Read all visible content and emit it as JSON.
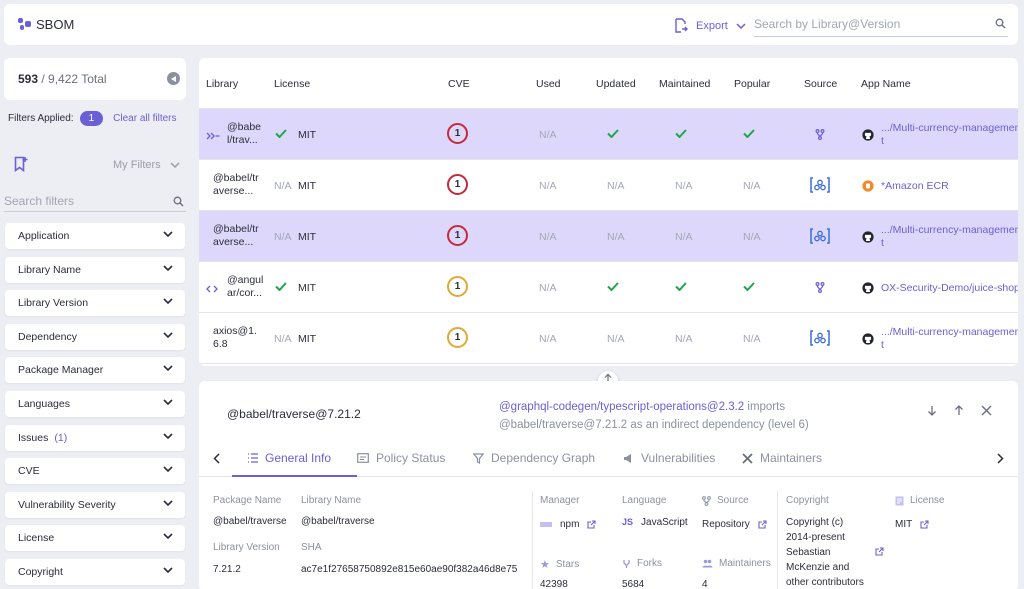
{
  "header": {
    "title": "SBOM",
    "export_label": "Export",
    "search_placeholder": "Search by Library@Version"
  },
  "sidebar": {
    "total_count": "593",
    "total_suffix": "/ 9,422 Total",
    "filters_applied_label": "Filters Applied:",
    "filters_applied_count": "1",
    "clear_all_label": "Clear all filters",
    "my_filters_label": "My Filters",
    "search_filters_placeholder": "Search filters",
    "filters": [
      {
        "label": "Application",
        "count": ""
      },
      {
        "label": "Library Name",
        "count": ""
      },
      {
        "label": "Library Version",
        "count": ""
      },
      {
        "label": "Dependency",
        "count": ""
      },
      {
        "label": "Package Manager",
        "count": ""
      },
      {
        "label": "Languages",
        "count": ""
      },
      {
        "label": "Issues",
        "count": "(1)"
      },
      {
        "label": "CVE",
        "count": ""
      },
      {
        "label": "Vulnerability Severity",
        "count": ""
      },
      {
        "label": "License",
        "count": ""
      },
      {
        "label": "Copyright",
        "count": ""
      }
    ]
  },
  "table": {
    "columns": [
      "Library",
      "License",
      "CVE",
      "Used",
      "Updated",
      "Maintained",
      "Popular",
      "Source",
      "App Name"
    ],
    "rows": [
      {
        "lib1": "@babe",
        "lib2": "l/trav...",
        "license_na": "",
        "license": "MIT",
        "cve": "1",
        "used": "N/A",
        "updated": "",
        "maintained": "",
        "popular": "",
        "app1": ".../Multi-currency-managemen",
        "app2": "t"
      },
      {
        "lib1": "@babel/tr",
        "lib2": "averse...",
        "license_na": "N/A",
        "license": "MIT",
        "cve": "1",
        "used": "N/A",
        "updated": "N/A",
        "maintained": "N/A",
        "popular": "N/A",
        "app1": "*Amazon ECR",
        "app2": ""
      },
      {
        "lib1": "@babel/tr",
        "lib2": "averse...",
        "license_na": "N/A",
        "license": "MIT",
        "cve": "1",
        "used": "N/A",
        "updated": "N/A",
        "maintained": "N/A",
        "popular": "N/A",
        "app1": ".../Multi-currency-managemen",
        "app2": "t"
      },
      {
        "lib1": "@angul",
        "lib2": "ar/cor...",
        "license_na": "",
        "license": "MIT",
        "cve": "1",
        "used": "N/A",
        "updated": "",
        "maintained": "",
        "popular": "",
        "app1": "OX-Security-Demo/juice-shop",
        "app2": ""
      },
      {
        "lib1": "axios@1.",
        "lib2": "6.8",
        "license_na": "N/A",
        "license": "MIT",
        "cve": "1",
        "used": "N/A",
        "updated": "N/A",
        "maintained": "N/A",
        "popular": "N/A",
        "app1": ".../Multi-currency-managemen",
        "app2": "t"
      }
    ]
  },
  "detail": {
    "title": "@babel/traverse@7.21.2",
    "imports_link": "@graphql-codegen/typescript-operations@2.3.2",
    "imports_text": " imports",
    "imports_line2": "@babel/traverse@7.21.2 as an indirect dependency (level 6)",
    "tabs": [
      "General Info",
      "Policy Status",
      "Dependency Graph",
      "Vulnerabilities",
      "Maintainers"
    ],
    "package_name_label": "Package Name",
    "package_name": "@babel/traverse",
    "library_name_label": "Library Name",
    "library_name": "@babel/traverse",
    "library_version_label": "Library Version",
    "library_version": "7.21.2",
    "sha_label": "SHA",
    "sha": "ac7e1f27658750892e815e60ae90f382a46d8e75",
    "manager_label": "Manager",
    "manager": "npm",
    "language_label": "Language",
    "language": "JavaScript",
    "source_label": "Source",
    "source": "Repository",
    "stars_label": "Stars",
    "stars": "42398",
    "forks_label": "Forks",
    "forks": "5684",
    "maintainers_label": "Maintainers",
    "maintainers": "4",
    "copyright_label": "Copyright",
    "copyright_lines": [
      "Copyright (c)",
      "2014-present",
      "Sebastian",
      "McKenzie and",
      "other contributors"
    ],
    "license_label": "License",
    "license": "MIT"
  },
  "colors": {
    "accent": "#6a5fd6",
    "selected_row": "#ddd8fb",
    "cve_red": "#c52a3b",
    "cve_orange": "#e3a935",
    "check": "#1fa64a"
  }
}
